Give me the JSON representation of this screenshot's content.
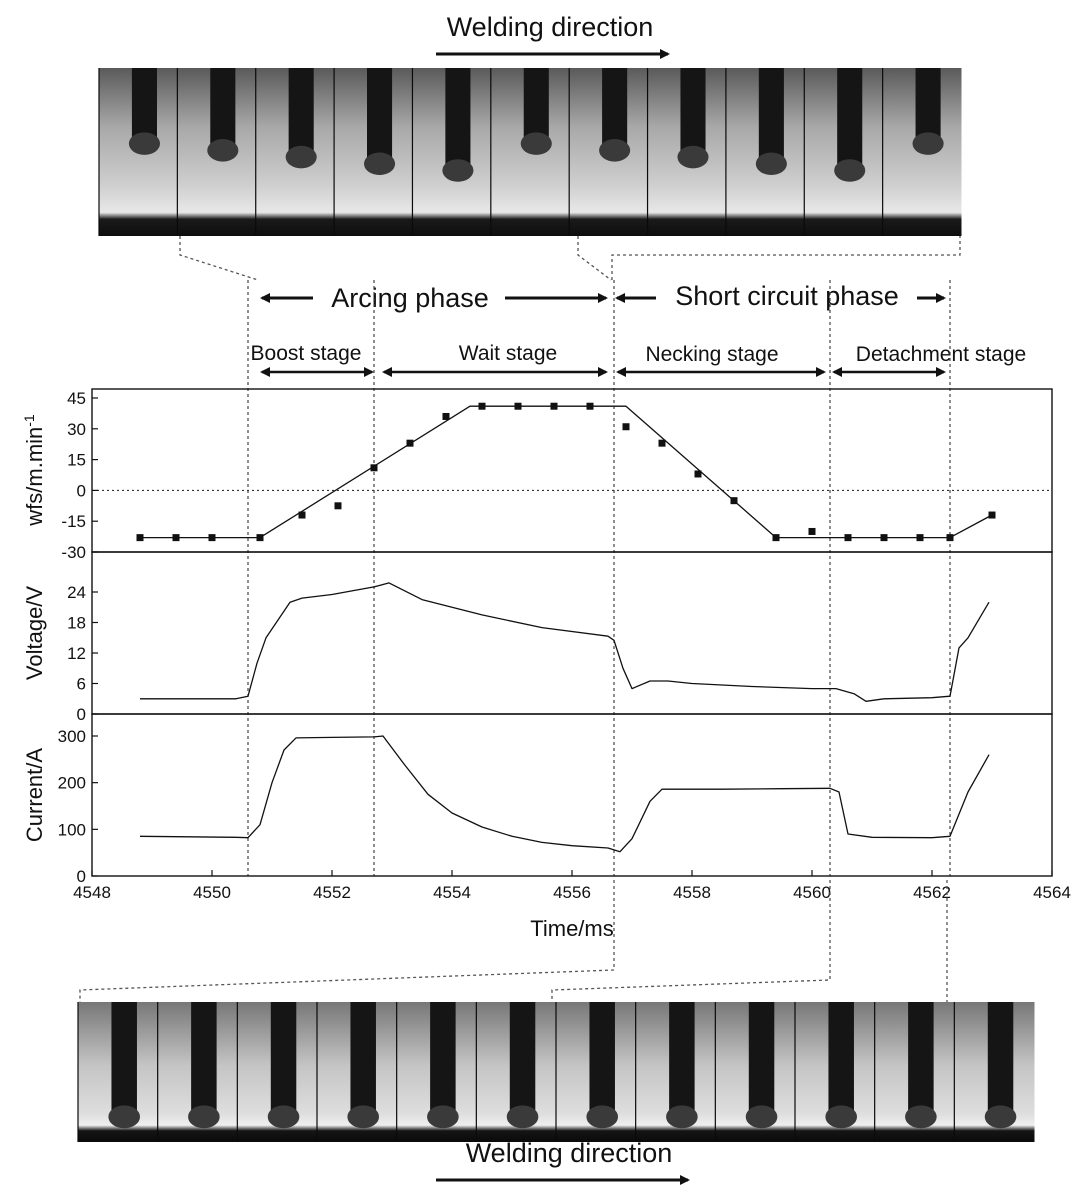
{
  "photo_strips": {
    "top_label": "Welding direction",
    "bottom_label": "Welding direction"
  },
  "phases": {
    "arcing": "Arcing phase",
    "short_circuit": "Short circuit phase"
  },
  "stages": {
    "boost": "Boost stage",
    "wait": "Wait stage",
    "necking": "Necking stage",
    "detachment": "Detachment stage"
  },
  "chart_data": {
    "type": "line",
    "xlabel": "Time/ms",
    "xlim": [
      4548,
      4564
    ],
    "x_ticks": [
      4548,
      4550,
      4552,
      4554,
      4556,
      4558,
      4560,
      4562,
      4564
    ],
    "stage_boundaries_ms": [
      4550.6,
      4552.7,
      4556.7,
      4560.3,
      4562.3
    ],
    "panels": [
      {
        "id": "wfs",
        "ylabel": "wfs/m.min",
        "ylabel_superscript": "-1",
        "ylim": [
          -30,
          45
        ],
        "y_ticks": [
          -30,
          -15,
          0,
          15,
          30,
          45
        ],
        "zero_line": "dotted",
        "series": [
          {
            "kind": "scatter",
            "marker": "square",
            "points": [
              [
                4548.8,
                -23
              ],
              [
                4549.4,
                -23
              ],
              [
                4550.0,
                -23
              ],
              [
                4550.8,
                -23
              ],
              [
                4551.5,
                -12
              ],
              [
                4552.1,
                -7.5
              ],
              [
                4552.7,
                11
              ],
              [
                4553.3,
                23
              ],
              [
                4553.9,
                36
              ],
              [
                4554.5,
                41
              ],
              [
                4555.1,
                41
              ],
              [
                4555.7,
                41
              ],
              [
                4556.3,
                41
              ],
              [
                4556.9,
                31
              ],
              [
                4557.5,
                23
              ],
              [
                4558.1,
                8
              ],
              [
                4558.7,
                -5
              ],
              [
                4559.4,
                -23
              ],
              [
                4560.0,
                -20
              ],
              [
                4560.6,
                -23
              ],
              [
                4561.2,
                -23
              ],
              [
                4561.8,
                -23
              ],
              [
                4562.3,
                -23
              ],
              [
                4563.0,
                -12
              ]
            ]
          },
          {
            "kind": "line",
            "points": [
              [
                4548.8,
                -23
              ],
              [
                4550.8,
                -23
              ],
              [
                4554.3,
                41
              ],
              [
                4556.9,
                41
              ],
              [
                4559.4,
                -23
              ],
              [
                4562.3,
                -23
              ],
              [
                4563.0,
                -12
              ]
            ]
          }
        ]
      },
      {
        "id": "voltage",
        "ylabel": "Voltage/V",
        "ylim": [
          0,
          28
        ],
        "y_ticks": [
          0,
          6,
          12,
          18,
          24
        ],
        "series": [
          {
            "kind": "line",
            "points": [
              [
                4548.8,
                3.0
              ],
              [
                4550.4,
                3.0
              ],
              [
                4550.6,
                3.5
              ],
              [
                4550.75,
                10
              ],
              [
                4550.9,
                15
              ],
              [
                4551.3,
                22
              ],
              [
                4551.5,
                22.8
              ],
              [
                4552.0,
                23.5
              ],
              [
                4552.7,
                25.0
              ],
              [
                4552.95,
                25.8
              ],
              [
                4553.5,
                22.5
              ],
              [
                4554.5,
                19.5
              ],
              [
                4555.5,
                17.0
              ],
              [
                4556.6,
                15.3
              ],
              [
                4556.7,
                14.5
              ],
              [
                4556.85,
                9
              ],
              [
                4557.0,
                5.0
              ],
              [
                4557.3,
                6.5
              ],
              [
                4557.6,
                6.5
              ],
              [
                4558.0,
                6.0
              ],
              [
                4559.0,
                5.4
              ],
              [
                4560.0,
                5.0
              ],
              [
                4560.4,
                5.0
              ],
              [
                4560.7,
                4.0
              ],
              [
                4560.9,
                2.5
              ],
              [
                4561.2,
                3.0
              ],
              [
                4562.0,
                3.2
              ],
              [
                4562.3,
                3.5
              ],
              [
                4562.45,
                13
              ],
              [
                4562.6,
                15
              ],
              [
                4562.95,
                22
              ]
            ]
          }
        ]
      },
      {
        "id": "current",
        "ylabel": "Current/A",
        "ylim": [
          0,
          320
        ],
        "y_ticks": [
          0,
          100,
          200,
          300
        ],
        "series": [
          {
            "kind": "line",
            "points": [
              [
                4548.8,
                85
              ],
              [
                4550.4,
                83
              ],
              [
                4550.6,
                82
              ],
              [
                4550.8,
                110
              ],
              [
                4551.0,
                200
              ],
              [
                4551.2,
                270
              ],
              [
                4551.4,
                296
              ],
              [
                4552.0,
                297
              ],
              [
                4552.7,
                298
              ],
              [
                4552.85,
                300
              ],
              [
                4553.2,
                240
              ],
              [
                4553.6,
                175
              ],
              [
                4554.0,
                135
              ],
              [
                4554.5,
                105
              ],
              [
                4555.0,
                85
              ],
              [
                4555.5,
                72
              ],
              [
                4556.0,
                65
              ],
              [
                4556.6,
                60
              ],
              [
                4556.8,
                52
              ],
              [
                4557.0,
                80
              ],
              [
                4557.3,
                160
              ],
              [
                4557.5,
                186
              ],
              [
                4558.5,
                186
              ],
              [
                4559.5,
                187
              ],
              [
                4560.3,
                188
              ],
              [
                4560.45,
                180
              ],
              [
                4560.6,
                90
              ],
              [
                4561.0,
                83
              ],
              [
                4562.0,
                82
              ],
              [
                4562.3,
                85
              ],
              [
                4562.6,
                180
              ],
              [
                4562.95,
                260
              ]
            ]
          }
        ]
      }
    ]
  }
}
